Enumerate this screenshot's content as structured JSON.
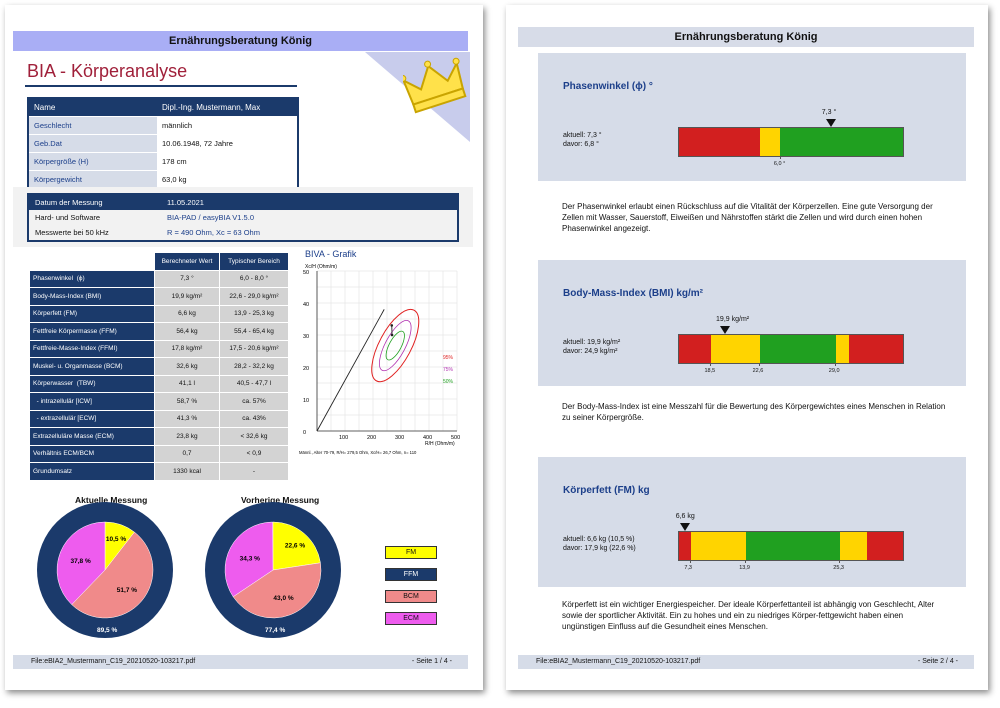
{
  "page1": {
    "header": "Ernährungsberatung  König",
    "title": "BIA - Körperanalyse",
    "person": [
      {
        "label": "Name",
        "value": "Dipl.-Ing. Mustermann, Max"
      },
      {
        "label": "Geschlecht",
        "value": "männlich"
      },
      {
        "label": "Geb.Dat",
        "value": "10.06.1948, 72 Jahre"
      },
      {
        "label": "Körpergröße (H)",
        "value": "178 cm"
      },
      {
        "label": "Körpergewicht",
        "value": "63,0 kg"
      }
    ],
    "measurement": [
      {
        "label": "Datum der Messung",
        "value": "11.05.2021"
      },
      {
        "label": "Hard- und Software",
        "value": "BIA-PAD / easyBIA V1.5.0"
      },
      {
        "label": "Messwerte bei 50 kHz",
        "value": "R = 490 Ohm, Xc = 63 Ohm"
      }
    ],
    "results_header": {
      "calc": "Berechneter Wert",
      "typ": "Typischer Bereich"
    },
    "results": [
      {
        "name": "Phasenwinkel  (ϕ)",
        "calc": "7,3 °",
        "typ": "6,0 - 8,0 °"
      },
      {
        "name": "Body-Mass-Index (BMI)",
        "calc": "19,9 kg/m²",
        "typ": "22,6 - 29,0 kg/m²"
      },
      {
        "name": "Körperfett (FM)",
        "calc": "6,6 kg",
        "typ": "13,9 - 25,3 kg"
      },
      {
        "name": "Fettfreie Körpermasse (FFM)",
        "calc": "56,4 kg",
        "typ": "55,4 - 65,4 kg"
      },
      {
        "name": "Fettfreie-Masse-Index (FFMI)",
        "calc": "17,8 kg/m²",
        "typ": "17,5 - 20,6 kg/m²"
      },
      {
        "name": "Muskel- u. Organmasse (BCM)",
        "calc": "32,6 kg",
        "typ": "28,2 - 32,2 kg"
      },
      {
        "name": "Körperwasser  (TBW)",
        "calc": "41,1 l",
        "typ": "40,5 - 47,7 l"
      },
      {
        "name": "  - intrazellulär [ICW]",
        "calc": "58,7 %",
        "typ": "ca. 57%"
      },
      {
        "name": "  - extrazellulär [ECW]",
        "calc": "41,3 %",
        "typ": "ca. 43%"
      },
      {
        "name": "Extrazelluläre Masse (ECM)",
        "calc": "23,8 kg",
        "typ": "< 32,6 kg"
      },
      {
        "name": "Verhältnis ECM/BCM",
        "calc": "0,7",
        "typ": "< 0,9"
      },
      {
        "name": "Grundumsatz",
        "calc": "1330 kcal",
        "typ": "-"
      }
    ],
    "biva": {
      "title": "BIVA - Grafik",
      "ylabel": "Xc/H (Ohm/m)",
      "xlabel": "R/H (Ohm/m)",
      "yticks": [
        "50",
        "40",
        "30",
        "20",
        "10",
        "0"
      ],
      "xticks": [
        "100",
        "200",
        "300",
        "400",
        "500"
      ],
      "legend": [
        "95%",
        "75%",
        "50%"
      ],
      "note": "Männl., Alter 70-79,  R/H= 279,5 Ohm,  Xc/H= 26,7 Ohm,  n= 110",
      "colors": {
        "c95": "#e02020",
        "c75": "#b030b0",
        "c50": "#20a020"
      }
    },
    "pies": {
      "current_title": "Aktuelle Messung",
      "previous_title": "Vorherige Messung",
      "current": {
        "ecm": "37,8 %",
        "fm": "10,5 %",
        "bcm": "51,7 %",
        "ffm": "89,5 %"
      },
      "previous": {
        "ecm": "34,3 %",
        "fm": "22,6 %",
        "bcm": "43,0 %",
        "ffm": "77,4 %"
      },
      "legend": [
        {
          "label": "FM",
          "color": "#ffff00",
          "text_color": "#111111"
        },
        {
          "label": "FFM",
          "color": "#1b3a6b",
          "text_color": "#ffffff"
        },
        {
          "label": "BCM",
          "color": "#f08a8a",
          "text_color": "#111111"
        },
        {
          "label": "ECM",
          "color": "#ee5cee",
          "text_color": "#111111"
        }
      ]
    },
    "footer": {
      "file": "File:eBIA2_Mustermann_C19_20210520-103217.pdf",
      "page": "- Seite 1 / 4 -"
    }
  },
  "page2": {
    "header": "Ernährungsberatung  König",
    "sections": [
      {
        "title": "Phasenwinkel (ϕ) °",
        "now": "aktuell: 7,3 °",
        "before": "davor: 6,8 °",
        "marker_label": "7,3 °",
        "marker_fraction": 0.682,
        "ticks": [
          {
            "label": "6,0 °",
            "fraction": 0.455
          }
        ],
        "segments": [
          {
            "color": "#d21f1f",
            "fraction": 0.36
          },
          {
            "color": "#ffd400",
            "fraction": 0.09
          },
          {
            "color": "#20a020",
            "fraction": 0.55
          }
        ],
        "text": "Der Phasenwinkel erlaubt einen Rückschluss auf die Vitalität der Körperzellen. Eine gute Versorgung der Zellen mit Wasser, Sauerstoff, Eiweißen und Nährstoffen stärkt die Zellen und wird durch einen hohen Phasenwinkel angezeigt."
      },
      {
        "title": "Body-Mass-Index  (BMI)  kg/m²",
        "now": "aktuell: 19,9 kg/m²",
        "before": "davor: 24,9 kg/m²",
        "marker_label": "19,9 kg/m²",
        "marker_fraction": 0.21,
        "ticks": [
          {
            "label": "18,5",
            "fraction": 0.145
          },
          {
            "label": "22,6",
            "fraction": 0.36
          },
          {
            "label": "29,0",
            "fraction": 0.7
          }
        ],
        "segments": [
          {
            "color": "#d21f1f",
            "fraction": 0.145
          },
          {
            "color": "#ffd400",
            "fraction": 0.215
          },
          {
            "color": "#20a020",
            "fraction": 0.34
          },
          {
            "color": "#ffd400",
            "fraction": 0.06
          },
          {
            "color": "#d21f1f",
            "fraction": 0.24
          }
        ],
        "text": "Der Body-Mass-Index ist eine Messzahl für die Bewertung des Körpergewichtes eines Menschen in Relation zu seiner Körpergröße."
      },
      {
        "title": "Körperfett (FM)  kg",
        "now": "aktuell: 6,6 kg (10,5 %)",
        "before": "davor: 17,9 kg (22,6 %)",
        "marker_label": "6,6 kg",
        "marker_fraction": 0.03,
        "ticks": [
          {
            "label": "7,3",
            "fraction": 0.055
          },
          {
            "label": "13,9",
            "fraction": 0.3
          },
          {
            "label": "25,3",
            "fraction": 0.72
          }
        ],
        "segments": [
          {
            "color": "#d21f1f",
            "fraction": 0.055
          },
          {
            "color": "#ffd400",
            "fraction": 0.245
          },
          {
            "color": "#20a020",
            "fraction": 0.42
          },
          {
            "color": "#ffd400",
            "fraction": 0.12
          },
          {
            "color": "#d21f1f",
            "fraction": 0.16
          }
        ],
        "text": "Körperfett ist ein wichtiger Energiespeicher. Der ideale Körperfettanteil ist abhängig von Geschlecht, Alter sowie der sportlicher Aktivität. Ein zu hohes und ein zu niedriges Körper-fettgewicht haben einen ungünstigen Einfluss auf die Gesundheit eines Menschen."
      }
    ],
    "footer": {
      "file": "File:eBIA2_Mustermann_C19_20210520-103217.pdf",
      "page": "- Seite 2 / 4 -"
    }
  }
}
